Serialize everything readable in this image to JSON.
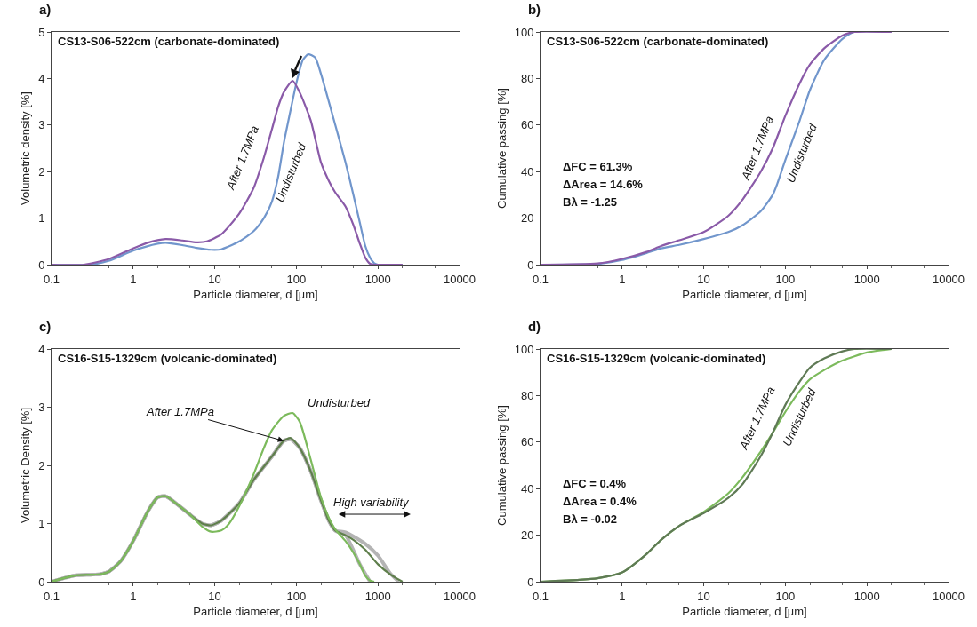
{
  "chart_data": [
    {
      "type": "line",
      "title": "a)",
      "subtitle": "CS13-S06-522cm (carbonate-dominated)",
      "xlabel": "Particle diameter, d [µm]",
      "ylabel": "Volumetric density [%]",
      "log": "x",
      "xlim": [
        0.1,
        10000
      ],
      "xticks": [
        0.1,
        1,
        10,
        100,
        1000,
        10000
      ],
      "ylim": [
        0,
        5
      ],
      "yticks": [
        0,
        1,
        2,
        3,
        4,
        5
      ],
      "grid": false,
      "legend": false,
      "series": [
        {
          "name": "Undisturbed",
          "color": "#7196cc",
          "x": [
            0.1,
            0.3,
            0.5,
            1,
            2,
            2.5,
            4,
            6,
            9,
            12,
            20,
            30,
            40,
            50,
            60,
            70,
            80,
            100,
            120,
            140,
            170,
            200,
            300,
            400,
            500,
            600,
            700,
            800,
            900,
            1000,
            2000
          ],
          "values": [
            0,
            0,
            0.08,
            0.3,
            0.45,
            0.47,
            0.42,
            0.36,
            0.32,
            0.33,
            0.5,
            0.72,
            1.0,
            1.35,
            1.9,
            2.6,
            3.1,
            3.9,
            4.4,
            4.52,
            4.45,
            4.1,
            3.0,
            2.2,
            1.5,
            0.9,
            0.4,
            0.15,
            0.03,
            0,
            0
          ]
        },
        {
          "name": "After 1.7MPa",
          "color": "#8a5aa8",
          "x": [
            0.1,
            0.25,
            0.5,
            1,
            1.5,
            2.5,
            4,
            6,
            8,
            12,
            20,
            30,
            40,
            50,
            60,
            70,
            90,
            110,
            150,
            200,
            250,
            300,
            400,
            500,
            600,
            700,
            800,
            900,
            2000
          ],
          "values": [
            0,
            0,
            0.12,
            0.35,
            0.47,
            0.55,
            0.52,
            0.48,
            0.5,
            0.65,
            1.1,
            1.65,
            2.3,
            2.9,
            3.4,
            3.7,
            3.95,
            3.7,
            3.1,
            2.2,
            1.8,
            1.55,
            1.25,
            0.85,
            0.45,
            0.15,
            0.02,
            0,
            0
          ]
        }
      ]
    },
    {
      "type": "line",
      "title": "b)",
      "subtitle": "CS13-S06-522cm (carbonate-dominated)",
      "xlabel": "Particle diameter, d [µm]",
      "ylabel": "Cumulative passing [%]",
      "log": "x",
      "xlim": [
        0.1,
        10000
      ],
      "xticks": [
        0.1,
        1,
        10,
        100,
        1000,
        10000
      ],
      "ylim": [
        0,
        100
      ],
      "yticks": [
        0,
        20,
        40,
        60,
        80,
        100
      ],
      "grid": false,
      "legend": false,
      "series": [
        {
          "name": "Undisturbed",
          "color": "#7196cc",
          "x": [
            0.1,
            0.5,
            1,
            2,
            3,
            5,
            10,
            20,
            30,
            50,
            70,
            80,
            100,
            150,
            200,
            300,
            500,
            700,
            2000
          ],
          "values": [
            0,
            0.3,
            2,
            5,
            7,
            8.5,
            11,
            14,
            17,
            23,
            30,
            35,
            45,
            62,
            75,
            88,
            97,
            100,
            100
          ]
        },
        {
          "name": "After 1.7MPa",
          "color": "#8a5aa8",
          "x": [
            0.1,
            0.5,
            1,
            2,
            3,
            5,
            10,
            20,
            30,
            50,
            70,
            100,
            150,
            200,
            300,
            500,
            700,
            2000
          ],
          "values": [
            0,
            0.5,
            2.5,
            5.5,
            8,
            10.5,
            14,
            21,
            28,
            40,
            50,
            64,
            78,
            86,
            93,
            98.5,
            100,
            100
          ]
        }
      ],
      "annotations": [
        "ΔFC = 61.3%",
        "ΔArea = 14.6%",
        "Bλ = -1.25"
      ]
    },
    {
      "type": "line",
      "title": "c)",
      "subtitle": "CS16-S15-1329cm (volcanic-dominated)",
      "xlabel": "Particle diameter, d [µm]",
      "ylabel": "Volumetric Density [%]",
      "log": "x",
      "xlim": [
        0.1,
        10000
      ],
      "xticks": [
        0.1,
        1,
        10,
        100,
        1000,
        10000
      ],
      "ylim": [
        0,
        4
      ],
      "yticks": [
        0,
        1,
        2,
        3,
        4
      ],
      "grid": false,
      "legend": false,
      "series": [
        {
          "color": "#b4b4b4",
          "x": [
            0.1,
            0.15,
            0.2,
            0.3,
            0.4,
            0.5,
            0.7,
            1,
            1.5,
            2,
            2.5,
            3,
            5,
            7,
            9,
            12,
            20,
            30,
            50,
            70,
            85,
            110,
            150,
            200,
            250,
            300,
            400,
            700,
            1000,
            1400,
            1800
          ],
          "values": [
            0,
            0.07,
            0.11,
            0.12,
            0.13,
            0.17,
            0.35,
            0.7,
            1.2,
            1.45,
            1.47,
            1.4,
            1.15,
            1.0,
            0.97,
            1.05,
            1.35,
            1.75,
            2.15,
            2.42,
            2.45,
            2.3,
            1.9,
            1.4,
            1.05,
            0.88,
            0.85,
            0.65,
            0.45,
            0.15,
            0
          ]
        },
        {
          "color": "#b4b4b4",
          "x": [
            0.1,
            0.15,
            0.2,
            0.3,
            0.4,
            0.5,
            0.7,
            1,
            1.5,
            2,
            2.5,
            3,
            5,
            7,
            9,
            12,
            20,
            30,
            50,
            70,
            85,
            110,
            150,
            200,
            250,
            300,
            400,
            600,
            800
          ],
          "values": [
            0,
            0.07,
            0.11,
            0.12,
            0.13,
            0.17,
            0.35,
            0.7,
            1.2,
            1.45,
            1.47,
            1.4,
            1.15,
            1.0,
            0.97,
            1.05,
            1.35,
            1.75,
            2.15,
            2.42,
            2.45,
            2.3,
            1.9,
            1.4,
            1.05,
            0.88,
            0.8,
            0.3,
            0
          ]
        },
        {
          "name": "After 1.7MPa",
          "color": "#5f7f4c",
          "x": [
            0.1,
            0.15,
            0.2,
            0.3,
            0.4,
            0.5,
            0.7,
            1,
            1.5,
            2,
            2.5,
            3,
            5,
            7,
            9,
            12,
            20,
            30,
            50,
            70,
            85,
            110,
            150,
            200,
            250,
            300,
            400,
            500,
            700,
            1000,
            1500,
            2000
          ],
          "values": [
            0,
            0.07,
            0.11,
            0.12,
            0.13,
            0.17,
            0.35,
            0.7,
            1.2,
            1.45,
            1.47,
            1.4,
            1.15,
            1.0,
            0.97,
            1.05,
            1.35,
            1.75,
            2.15,
            2.42,
            2.47,
            2.3,
            1.9,
            1.4,
            1.05,
            0.88,
            0.8,
            0.72,
            0.55,
            0.3,
            0.1,
            0
          ]
        },
        {
          "name": "Undisturbed",
          "color": "#7cba5c",
          "x": [
            0.1,
            0.15,
            0.2,
            0.3,
            0.4,
            0.5,
            0.7,
            1,
            1.5,
            2,
            2.5,
            3,
            5,
            7,
            9,
            12,
            15,
            20,
            30,
            40,
            50,
            70,
            90,
            110,
            150,
            200,
            250,
            300,
            400,
            500,
            600,
            700,
            800,
            900
          ],
          "values": [
            0,
            0.07,
            0.11,
            0.12,
            0.13,
            0.17,
            0.35,
            0.7,
            1.2,
            1.45,
            1.47,
            1.4,
            1.15,
            0.95,
            0.86,
            0.88,
            1.0,
            1.3,
            1.85,
            2.3,
            2.6,
            2.85,
            2.9,
            2.75,
            2.1,
            1.45,
            1.1,
            0.9,
            0.7,
            0.5,
            0.3,
            0.1,
            0.02,
            0
          ]
        }
      ],
      "annotations": [
        "High variability"
      ]
    },
    {
      "type": "line",
      "title": "d)",
      "subtitle": "CS16-S15-1329cm (volcanic-dominated)",
      "xlabel": "Particle diameter, d [µm]",
      "ylabel": "Cumulative passing [%]",
      "log": "x",
      "xlim": [
        0.1,
        10000
      ],
      "xticks": [
        0.1,
        1,
        10,
        100,
        1000,
        10000
      ],
      "ylim": [
        0,
        100
      ],
      "yticks": [
        0,
        20,
        40,
        60,
        80,
        100
      ],
      "grid": false,
      "legend": false,
      "series": [
        {
          "name": "Undisturbed",
          "color": "#7cba5c",
          "x": [
            0.1,
            0.3,
            0.5,
            1,
            2,
            3,
            5,
            10,
            20,
            30,
            50,
            70,
            100,
            150,
            200,
            300,
            500,
            1000,
            2000
          ],
          "values": [
            0,
            0.8,
            1.5,
            4,
            12,
            18,
            24,
            30,
            38,
            45,
            56,
            64,
            73,
            82,
            87,
            91,
            95,
            98.5,
            100
          ]
        },
        {
          "name": "After 1.7MPa",
          "color": "#5f7a55",
          "x": [
            0.1,
            0.3,
            0.5,
            1,
            2,
            3,
            5,
            10,
            20,
            30,
            50,
            70,
            100,
            150,
            200,
            300,
            500,
            700,
            2000
          ],
          "values": [
            0,
            0.8,
            1.5,
            4,
            12,
            18,
            24,
            29.5,
            36,
            42,
            54,
            64,
            76,
            86,
            92,
            96,
            99,
            100,
            100
          ]
        }
      ],
      "annotations": [
        "ΔFC = 0.4%",
        "ΔArea = 0.4%",
        "Bλ = -0.02"
      ]
    }
  ]
}
